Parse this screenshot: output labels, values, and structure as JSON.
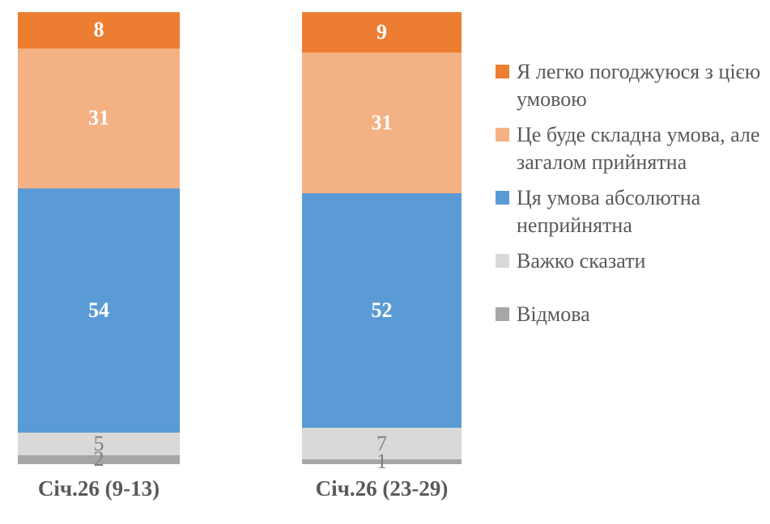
{
  "chart_data": {
    "type": "bar",
    "stacked": true,
    "orientation": "vertical",
    "grid": false,
    "legend_position": "right",
    "ylim": [
      0,
      100
    ],
    "categories": [
      "Січ.26 (9-13)",
      "Січ.26 (23-29)"
    ],
    "series": [
      {
        "name": "Я легко погоджуюся з цією умовою",
        "values": [
          8,
          9
        ],
        "color": "#ED7D31",
        "label_color": "#FFFFFF",
        "label_bold": true
      },
      {
        "name": "Це буде складна умова, але загалом прийнятна",
        "values": [
          31,
          31
        ],
        "color": "#F4B183",
        "label_color": "#FFFFFF",
        "label_bold": true
      },
      {
        "name": "Ця умова абсолютна неприйнятна",
        "values": [
          54,
          52
        ],
        "color": "#5B9BD5",
        "label_color": "#FFFFFF",
        "label_bold": true
      },
      {
        "name": "Важко сказати",
        "values": [
          5,
          7
        ],
        "color": "#D9D9D9",
        "label_color": "#7F7F7F",
        "label_bold": false
      },
      {
        "name": "Відмова",
        "values": [
          2,
          1
        ],
        "color": "#A6A6A6",
        "label_color": "#7F7F7F",
        "label_bold": false
      }
    ]
  },
  "colors": {
    "background": "#FFFFFF",
    "text": "#595959",
    "value_label_on_dark": "#FFFFFF",
    "value_label_on_light": "#7F7F7F"
  }
}
